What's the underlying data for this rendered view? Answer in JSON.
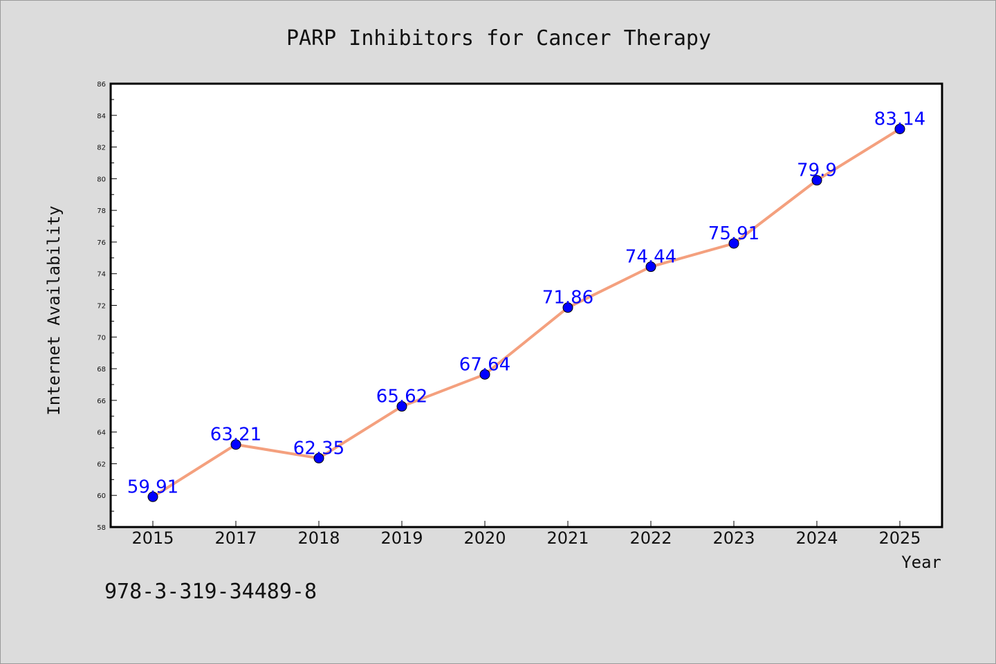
{
  "chart_data": {
    "type": "line",
    "title": "PARP Inhibitors for Cancer Therapy",
    "xlabel": "Year",
    "ylabel": "Internet Availability",
    "categories": [
      "2015",
      "2017",
      "2018",
      "2019",
      "2020",
      "2021",
      "2022",
      "2023",
      "2024",
      "2025"
    ],
    "series": [
      {
        "values": [
          59.91,
          63.21,
          62.35,
          65.62,
          67.64,
          71.86,
          74.44,
          75.91,
          79.9,
          83.14
        ],
        "line_color": "#f4a07e",
        "marker_color": "#0000ff"
      }
    ],
    "data_labels": [
      "59.91",
      "63.21",
      "62.35",
      "65.62",
      "67.64",
      "71.86",
      "74.44",
      "75.91",
      "79.9",
      "83.14"
    ],
    "ylim": [
      58,
      86
    ],
    "yticks": [
      "58",
      "60",
      "62",
      "64",
      "66",
      "68",
      "70",
      "72",
      "74",
      "76",
      "78",
      "80",
      "82",
      "84",
      "86"
    ],
    "grid": false,
    "legend": "none",
    "label_color": "#0000ff"
  },
  "footnote": "978-3-319-34489-8"
}
